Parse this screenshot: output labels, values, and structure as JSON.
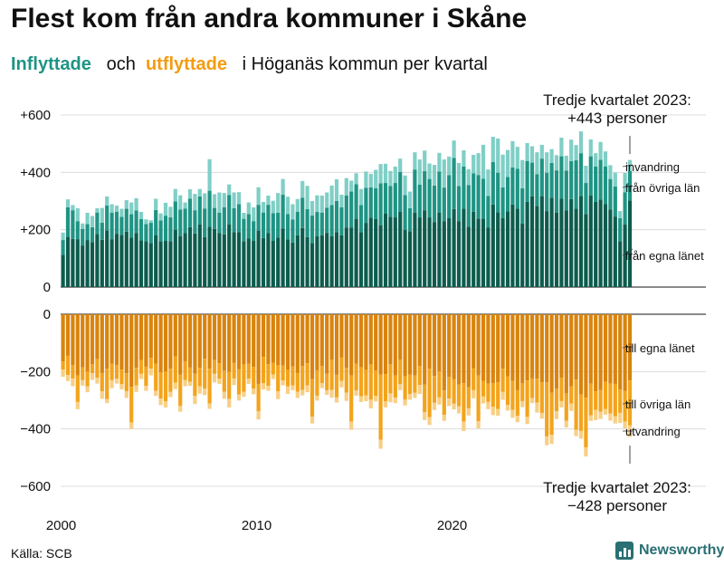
{
  "header": {
    "title": "Flest kom från andra kommuner i Skåne",
    "subtitle_in": "Inflyttade",
    "subtitle_and": "och",
    "subtitle_out": "utflyttade",
    "subtitle_rest": "i Höganäs  kommun  per  kvartal"
  },
  "source": "Källa: SCB",
  "brand": "Newsworthy",
  "colors": {
    "in_same_county": "#0d5c4e",
    "in_other_counties": "#1f9484",
    "in_abroad": "#80cfc6",
    "out_same_county": "#d9840e",
    "out_other_counties": "#f3a41c",
    "out_abroad": "#f7cf86"
  },
  "chart_data": {
    "type": "bar",
    "stacked": true,
    "x_range": [
      2000,
      2023.75
    ],
    "x_ticks": [
      "2000",
      "2010",
      "2020"
    ],
    "top_panel": {
      "ylim": [
        0,
        600
      ],
      "y_ticks": [
        "0",
        "+200",
        "+400",
        "+600"
      ],
      "series": [
        {
          "name": "från egna länet",
          "values": [
            113,
            175,
            168,
            167,
            145,
            164,
            157,
            185,
            165,
            198,
            167,
            186,
            182,
            193,
            172,
            189,
            163,
            160,
            154,
            180,
            160,
            161,
            160,
            200,
            178,
            189,
            209,
            187,
            219,
            174,
            211,
            203,
            189,
            184,
            218,
            192,
            191,
            160,
            170,
            161,
            197,
            171,
            188,
            161,
            172,
            204,
            166,
            155,
            181,
            206,
            174,
            154,
            177,
            181,
            189,
            177,
            192,
            181,
            208,
            208,
            238,
            192,
            224,
            242,
            238,
            216,
            257,
            245,
            243,
            262,
            200,
            195,
            260,
            243,
            268,
            243,
            226,
            259,
            230,
            240,
            272,
            230,
            273,
            211,
            263,
            239,
            239,
            208,
            288,
            261,
            240,
            264,
            288,
            273,
            221,
            297,
            316,
            283,
            317,
            265,
            312,
            259,
            308,
            267,
            307,
            273,
            318,
            255,
            319,
            297,
            305,
            290,
            271,
            246,
            160,
            219,
            302
          ]
        },
        {
          "name": "från övriga län",
          "values": [
            51,
            103,
            100,
            63,
            58,
            56,
            52,
            75,
            60,
            87,
            92,
            77,
            63,
            80,
            82,
            78,
            74,
            60,
            70,
            89,
            72,
            88,
            83,
            99,
            92,
            85,
            99,
            81,
            97,
            100,
            125,
            73,
            70,
            94,
            103,
            83,
            98,
            78,
            85,
            69,
            90,
            89,
            99,
            97,
            87,
            118,
            89,
            81,
            82,
            105,
            98,
            96,
            85,
            79,
            88,
            109,
            108,
            97,
            111,
            125,
            121,
            94,
            122,
            106,
            107,
            146,
            106,
            108,
            120,
            139,
            121,
            80,
            150,
            114,
            136,
            134,
            128,
            144,
            117,
            150,
            178,
            122,
            147,
            145,
            134,
            152,
            139,
            110,
            148,
            138,
            108,
            120,
            129,
            140,
            124,
            143,
            118,
            111,
            131,
            134,
            121,
            148,
            148,
            139,
            132,
            169,
            149,
            108,
            137,
            123,
            139,
            131,
            106,
            105,
            80,
            112,
            103
          ]
        },
        {
          "name": "invandring",
          "values": [
            26,
            28,
            18,
            45,
            19,
            39,
            39,
            15,
            51,
            31,
            30,
            21,
            28,
            30,
            41,
            43,
            25,
            16,
            9,
            39,
            25,
            45,
            37,
            43,
            50,
            21,
            33,
            57,
            26,
            53,
            110,
            48,
            71,
            50,
            37,
            55,
            42,
            21,
            40,
            48,
            61,
            37,
            32,
            43,
            69,
            55,
            60,
            53,
            44,
            59,
            81,
            50,
            58,
            59,
            53,
            68,
            76,
            44,
            61,
            38,
            38,
            56,
            57,
            47,
            64,
            67,
            67,
            52,
            57,
            47,
            68,
            58,
            60,
            88,
            72,
            54,
            72,
            65,
            98,
            65,
            61,
            81,
            57,
            55,
            64,
            76,
            118,
            92,
            88,
            119,
            114,
            94,
            92,
            76,
            98,
            62,
            57,
            76,
            48,
            71,
            48,
            53,
            65,
            52,
            75,
            53,
            76,
            60,
            59,
            47,
            62,
            52,
            48,
            48,
            25,
            67,
            38
          ]
        }
      ]
    },
    "bottom_panel": {
      "ylim": [
        -600,
        0
      ],
      "y_ticks": [
        "0",
        "−200",
        "−400",
        "−600"
      ],
      "series": [
        {
          "name": "till egna länet",
          "values": [
            -165,
            -145,
            -177,
            -213,
            -185,
            -200,
            -174,
            -157,
            -205,
            -190,
            -172,
            -177,
            -193,
            -206,
            -253,
            -187,
            -160,
            -183,
            -152,
            -172,
            -202,
            -200,
            -190,
            -147,
            -211,
            -164,
            -186,
            -208,
            -187,
            -155,
            -190,
            -160,
            -171,
            -197,
            -201,
            -170,
            -191,
            -175,
            -172,
            -184,
            -243,
            -149,
            -174,
            -170,
            -178,
            -179,
            -194,
            -182,
            -205,
            -181,
            -171,
            -226,
            -196,
            -181,
            -208,
            -159,
            -210,
            -150,
            -187,
            -214,
            -172,
            -185,
            -194,
            -175,
            -196,
            -210,
            -209,
            -174,
            -214,
            -159,
            -217,
            -211,
            -213,
            -181,
            -245,
            -190,
            -215,
            -199,
            -266,
            -219,
            -227,
            -245,
            -241,
            -254,
            -189,
            -214,
            -232,
            -242,
            -241,
            -237,
            -190,
            -217,
            -233,
            -265,
            -240,
            -231,
            -224,
            -225,
            -237,
            -237,
            -274,
            -260,
            -222,
            -276,
            -252,
            -228,
            -280,
            -291,
            -242,
            -269,
            -264,
            -236,
            -242,
            -243,
            -263,
            -267,
            -231
          ]
        },
        {
          "name": "till övriga län",
          "values": [
            -28,
            -67,
            -47,
            -93,
            -44,
            -51,
            -32,
            -64,
            -64,
            -106,
            -58,
            -48,
            -51,
            -63,
            -125,
            -61,
            -48,
            -67,
            -38,
            -95,
            -92,
            -104,
            -81,
            -92,
            -109,
            -65,
            -50,
            -77,
            -64,
            -104,
            -121,
            -48,
            -54,
            -73,
            -94,
            -54,
            -89,
            -96,
            -53,
            -75,
            -95,
            -91,
            -76,
            -40,
            -91,
            -52,
            -58,
            -66,
            -65,
            -83,
            -77,
            -131,
            -88,
            -59,
            -57,
            -105,
            -80,
            -82,
            -86,
            -160,
            -94,
            -101,
            -89,
            -123,
            -89,
            -228,
            -95,
            -102,
            -77,
            -85,
            -81,
            -67,
            -61,
            -66,
            -96,
            -169,
            -94,
            -91,
            -85,
            -75,
            -85,
            -76,
            -134,
            -74,
            -76,
            -159,
            -55,
            -64,
            -82,
            -93,
            -81,
            -99,
            -101,
            -89,
            -63,
            -127,
            -69,
            -83,
            -107,
            -189,
            -146,
            -78,
            -81,
            -96,
            -59,
            -175,
            -127,
            -173,
            -111,
            -65,
            -76,
            -94,
            -104,
            -113,
            -81,
            -107,
            -157
          ]
        },
        {
          "name": "utvandring",
          "values": [
            -25,
            -21,
            -27,
            -25,
            -20,
            -21,
            -23,
            -21,
            -26,
            -14,
            -28,
            -17,
            -18,
            -23,
            -22,
            -23,
            -18,
            -17,
            -23,
            -18,
            -23,
            -21,
            -18,
            -22,
            -20,
            -22,
            -14,
            -28,
            -26,
            -23,
            -19,
            -30,
            -18,
            -25,
            -30,
            -23,
            -21,
            -17,
            -18,
            -20,
            -29,
            -22,
            -17,
            -16,
            -27,
            -17,
            -26,
            -17,
            -22,
            -19,
            -24,
            -24,
            -17,
            -18,
            -16,
            -27,
            -18,
            -23,
            -29,
            -29,
            -18,
            -20,
            -20,
            -30,
            -19,
            -31,
            -21,
            -31,
            -19,
            -21,
            -20,
            -20,
            -18,
            -31,
            -28,
            -27,
            -25,
            -25,
            -21,
            -26,
            -20,
            -25,
            -32,
            -25,
            -28,
            -25,
            -24,
            -25,
            -29,
            -24,
            -27,
            -20,
            -27,
            -22,
            -21,
            -25,
            -17,
            -35,
            -20,
            -31,
            -32,
            -28,
            -22,
            -23,
            -26,
            -22,
            -27,
            -32,
            -19,
            -35,
            -25,
            -20,
            -25,
            -25,
            -35,
            -24,
            -40
          ]
        }
      ]
    },
    "annotations": {
      "top_line1": "Tredje kvartalet 2023:",
      "top_line2": "+443 personer",
      "bottom_line1": "Tredje kvartalet 2023:",
      "bottom_line2": "−428 personer",
      "in_abroad_label": "invandring",
      "in_other_label": "från övriga län",
      "in_same_label": "från egna länet",
      "out_same_label": "till egna länet",
      "out_other_label": "till övriga län",
      "out_abroad_label": "utvandring"
    }
  }
}
